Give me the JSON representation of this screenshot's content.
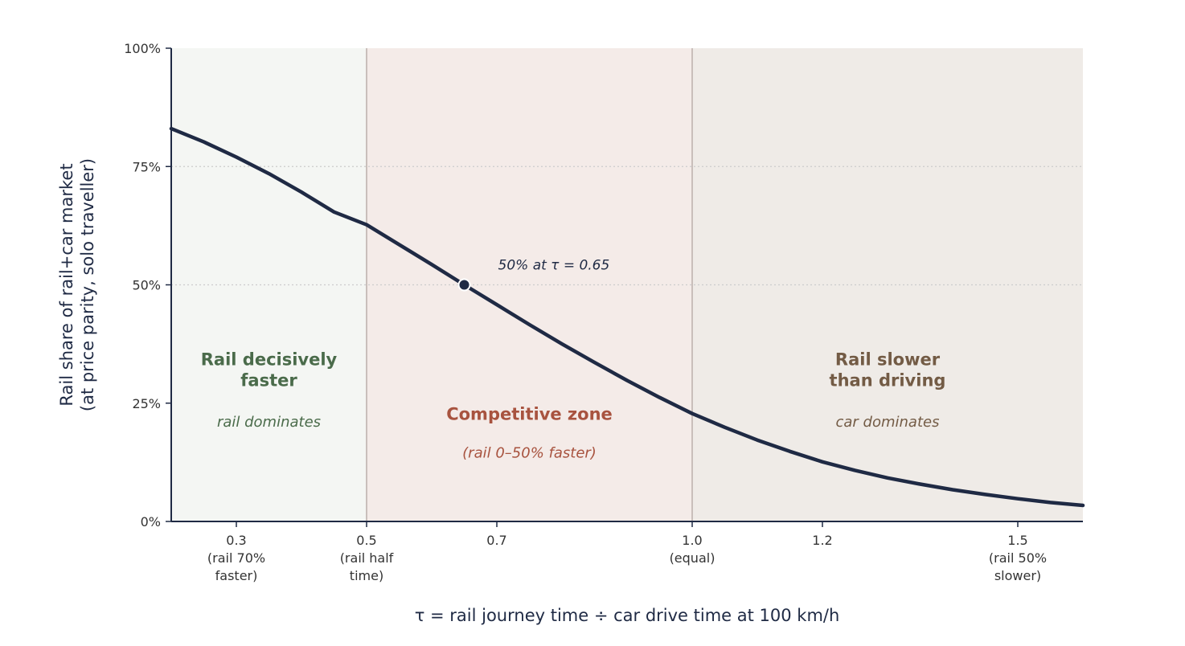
{
  "chart_data": {
    "type": "line",
    "xlabel": "τ  =  rail journey time  ÷  car drive time at 100 km/h",
    "ylabel": [
      "Rail share of rail+car market",
      "(at price parity, solo traveller)"
    ],
    "xlim": [
      0.2,
      1.6
    ],
    "ylim": [
      0,
      100
    ],
    "x_ticks": [
      {
        "value": 0.3,
        "lines": [
          "0.3",
          "(rail 70%",
          "faster)"
        ]
      },
      {
        "value": 0.5,
        "lines": [
          "0.5",
          "(rail half",
          "time)"
        ]
      },
      {
        "value": 0.7,
        "lines": [
          "0.7"
        ]
      },
      {
        "value": 1.0,
        "lines": [
          "1.0",
          "(equal)"
        ]
      },
      {
        "value": 1.2,
        "lines": [
          "1.2"
        ]
      },
      {
        "value": 1.5,
        "lines": [
          "1.5",
          "(rail 50%",
          "slower)"
        ]
      }
    ],
    "y_ticks": [
      {
        "value": 0,
        "label": "0%"
      },
      {
        "value": 25,
        "label": "25%"
      },
      {
        "value": 50,
        "label": "50%"
      },
      {
        "value": 75,
        "label": "75%"
      },
      {
        "value": 100,
        "label": "100%"
      }
    ],
    "grid": {
      "y_dotted": [
        50,
        75
      ]
    },
    "zones": [
      {
        "from": 0.2,
        "to": 0.5,
        "title": [
          "Rail decisively",
          "faster"
        ],
        "subtitle": "rail dominates",
        "fill": "#f4f6f3",
        "text_color": "#4a6b4a",
        "title_y": 33,
        "sub_y": 20
      },
      {
        "from": 0.5,
        "to": 1.0,
        "title": [
          "Competitive zone"
        ],
        "subtitle": "(rail 0–50% faster)",
        "fill": "#f4ebe8",
        "text_color": "#a8533f",
        "title_y": 21.5,
        "sub_y": 13.5
      },
      {
        "from": 1.0,
        "to": 1.6,
        "title": [
          "Rail slower",
          "than driving"
        ],
        "subtitle": "car dominates",
        "fill": "#efebe7",
        "text_color": "#735b45",
        "title_y": 33,
        "sub_y": 20
      }
    ],
    "series": [
      {
        "x": [
          0.2,
          0.25,
          0.3,
          0.35,
          0.4,
          0.45,
          0.5,
          0.55,
          0.6,
          0.65,
          0.7,
          0.75,
          0.8,
          0.85,
          0.9,
          0.95,
          1.0,
          1.05,
          1.1,
          1.15,
          1.2,
          1.25,
          1.3,
          1.35,
          1.4,
          1.45,
          1.5,
          1.55,
          1.6
        ],
        "y": [
          83,
          80.2,
          77,
          73.5,
          69.6,
          65.4,
          62.7,
          58.5,
          54.3,
          50,
          45.8,
          41.6,
          37.5,
          33.6,
          29.8,
          26.2,
          22.8,
          19.9,
          17.2,
          14.8,
          12.6,
          10.8,
          9.2,
          7.9,
          6.7,
          5.7,
          4.8,
          4.0,
          3.4
        ],
        "color": "#1f2a44"
      }
    ],
    "marker": {
      "x": 0.65,
      "y": 50,
      "label": "50% at τ = 0.65"
    },
    "colors": {
      "line": "#1f2a44",
      "axis": "#1f2a44",
      "grid": "#cccccc",
      "divider": "#c9bfbb"
    }
  }
}
